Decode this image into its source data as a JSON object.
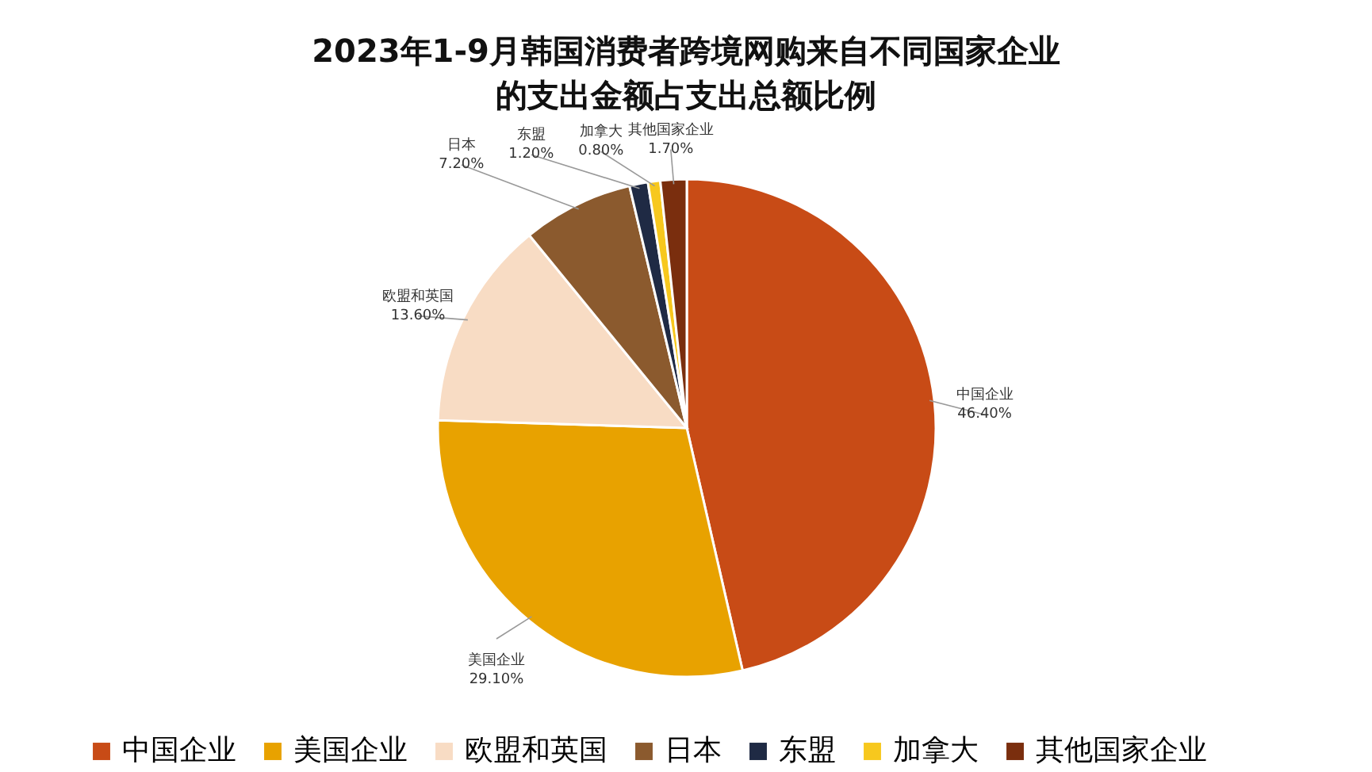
{
  "chart_data": {
    "type": "pie",
    "title": "2023年1-9月韩国消费者跨境网购来自不同国家企业的支出金额占支出总额比例",
    "categories": [
      "中国企业",
      "美国企业",
      "欧盟和英国",
      "日本",
      "东盟",
      "加拿大",
      "其他国家企业"
    ],
    "values": [
      46.4,
      29.1,
      13.6,
      7.2,
      1.2,
      0.8,
      1.7
    ],
    "value_labels": [
      "46.40%",
      "29.10%",
      "13.60%",
      "7.20%",
      "1.20%",
      "0.80%",
      "1.70%"
    ],
    "colors": [
      "#c84b16",
      "#e8a200",
      "#f8dcc4",
      "#8b5a2e",
      "#1f2a44",
      "#f7c81e",
      "#7a2e0e"
    ],
    "legend": "bottom"
  }
}
